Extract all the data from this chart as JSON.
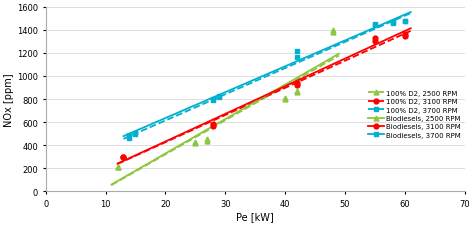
{
  "title": "",
  "xlabel": "Pe [kW]",
  "ylabel": "NOx [ppm]",
  "xlim": [
    0,
    70
  ],
  "ylim": [
    0,
    1600
  ],
  "xticks": [
    0,
    10,
    20,
    30,
    40,
    50,
    60,
    70
  ],
  "yticks": [
    0,
    200,
    400,
    600,
    800,
    1000,
    1200,
    1400,
    1600
  ],
  "series": [
    {
      "label": "100% D2, 2500 RPM",
      "color": "#8dc63f",
      "linestyle": "--",
      "marker": "^",
      "x": [
        12,
        25,
        27,
        40,
        42,
        48
      ],
      "y": [
        210,
        420,
        440,
        800,
        860,
        1380
      ],
      "fit_degree": 1
    },
    {
      "label": "100% D2, 3100 RPM",
      "color": "#ff0000",
      "linestyle": "--",
      "marker": "o",
      "x": [
        13,
        28,
        42,
        55,
        60
      ],
      "y": [
        295,
        570,
        920,
        1300,
        1350
      ],
      "fit_degree": 1
    },
    {
      "label": "100% D2, 3700 RPM",
      "color": "#00b0d0",
      "linestyle": "--",
      "marker": "s",
      "x": [
        14,
        15,
        28,
        29,
        42,
        55,
        58,
        60
      ],
      "y": [
        460,
        500,
        790,
        820,
        1160,
        1440,
        1460,
        1480
      ],
      "fit_degree": 1
    },
    {
      "label": "Biodiesels, 2500 RPM",
      "color": "#8dc63f",
      "linestyle": "-",
      "marker": "^",
      "x": [
        12,
        25,
        27,
        40,
        42,
        48
      ],
      "y": [
        215,
        430,
        450,
        810,
        870,
        1400
      ],
      "fit_degree": 1
    },
    {
      "label": "Biodiesels, 3100 RPM",
      "color": "#ff0000",
      "linestyle": "-",
      "marker": "o",
      "x": [
        13,
        28,
        42,
        55,
        60
      ],
      "y": [
        295,
        580,
        940,
        1330,
        1360
      ],
      "fit_degree": 1
    },
    {
      "label": "Biodiesels, 3700 RPM",
      "color": "#00b0d0",
      "linestyle": "-",
      "marker": "s",
      "x": [
        14,
        15,
        28,
        29,
        42,
        55,
        58,
        60
      ],
      "y": [
        490,
        510,
        800,
        830,
        1220,
        1450,
        1465,
        1475
      ],
      "fit_degree": 1
    }
  ],
  "bg_color": "#ffffff",
  "grid_color": "#d9d9d9",
  "fig_width": 4.74,
  "fig_height": 2.26,
  "dpi": 100
}
